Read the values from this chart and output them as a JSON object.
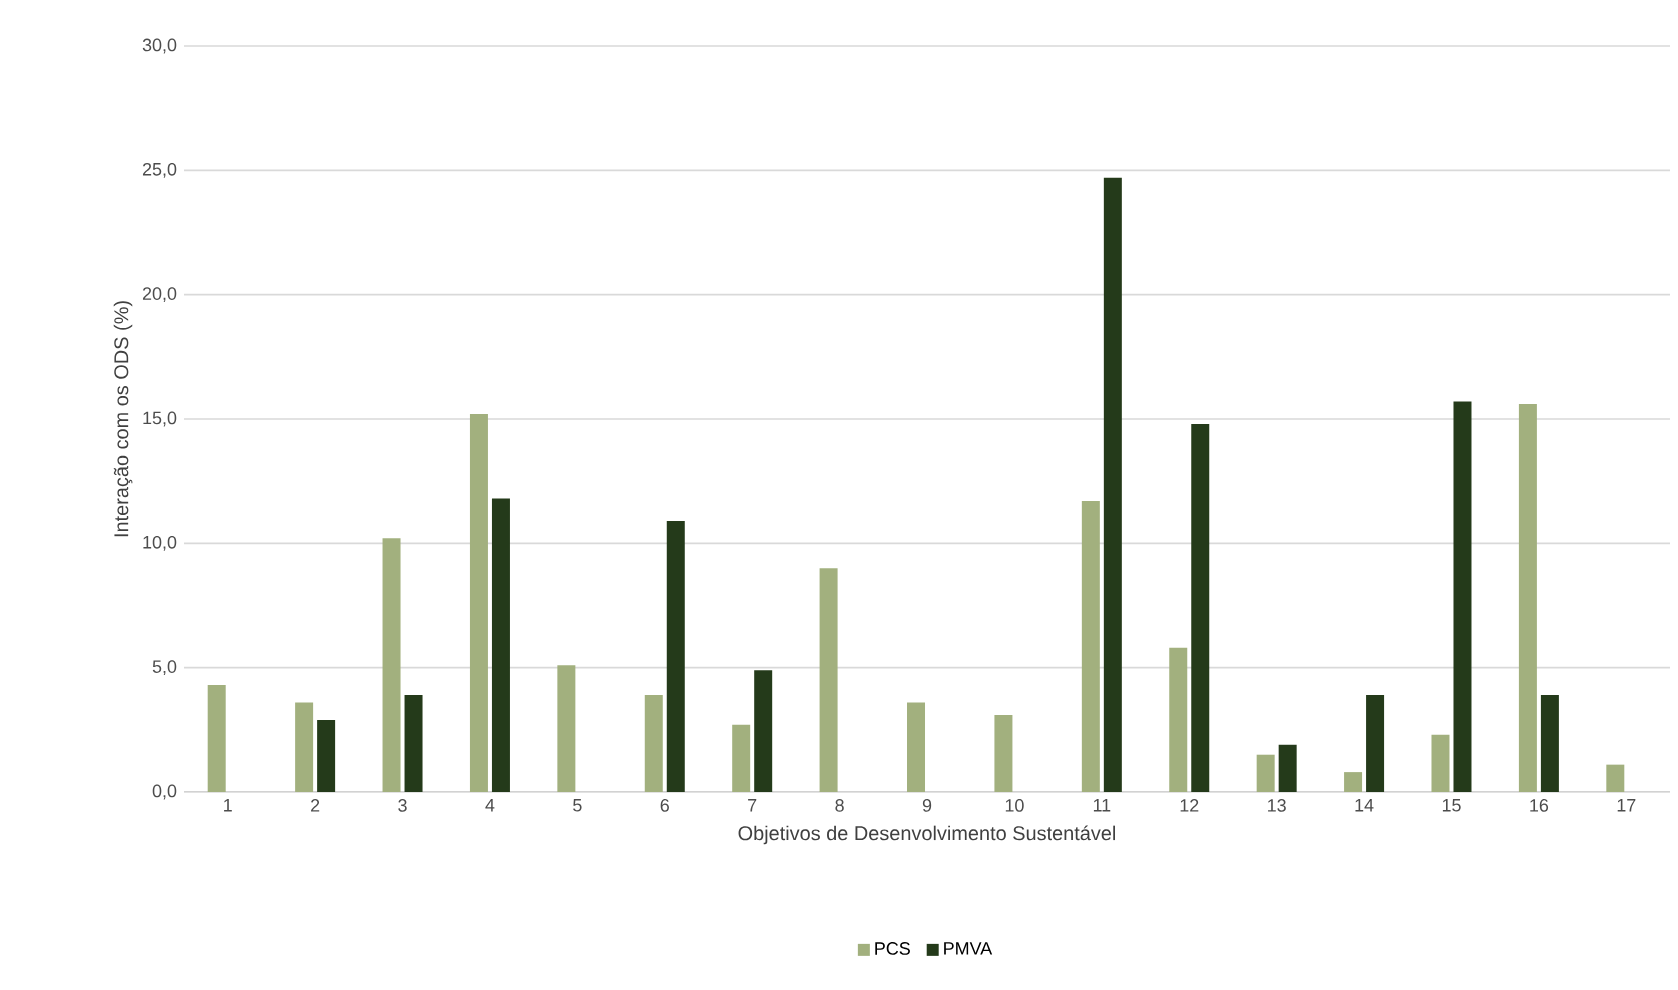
{
  "chart_data": {
    "type": "bar",
    "xlabel": "Objetivos de Desenvolvimento  Sustentável",
    "ylabel": "Interação  com os ODS (%)",
    "categories": [
      "1",
      "2",
      "3",
      "4",
      "5",
      "6",
      "7",
      "8",
      "9",
      "10",
      "11",
      "12",
      "13",
      "14",
      "15",
      "16",
      "17"
    ],
    "series": [
      {
        "name": "PCS",
        "color": "#a2b07e",
        "values": [
          4.3,
          3.6,
          10.2,
          15.2,
          5.1,
          3.9,
          2.7,
          9.0,
          3.6,
          3.1,
          11.7,
          5.8,
          1.5,
          0.8,
          2.3,
          15.6,
          1.1
        ]
      },
      {
        "name": "PMVA",
        "color": "#243a1a",
        "values": [
          null,
          2.9,
          3.9,
          11.8,
          null,
          10.9,
          4.9,
          null,
          null,
          null,
          24.7,
          14.8,
          1.9,
          3.9,
          15.7,
          3.9,
          null
        ]
      }
    ],
    "ylim": [
      0,
      30
    ],
    "yticks": [
      {
        "value": 0,
        "label": "0,0"
      },
      {
        "value": 5,
        "label": "5,0"
      },
      {
        "value": 10,
        "label": "10,0"
      },
      {
        "value": 15,
        "label": "15,0"
      },
      {
        "value": 20,
        "label": "20,0"
      },
      {
        "value": 25,
        "label": "25,0"
      },
      {
        "value": 30,
        "label": "30,0"
      }
    ],
    "grid": "y",
    "legend": "bottom"
  }
}
